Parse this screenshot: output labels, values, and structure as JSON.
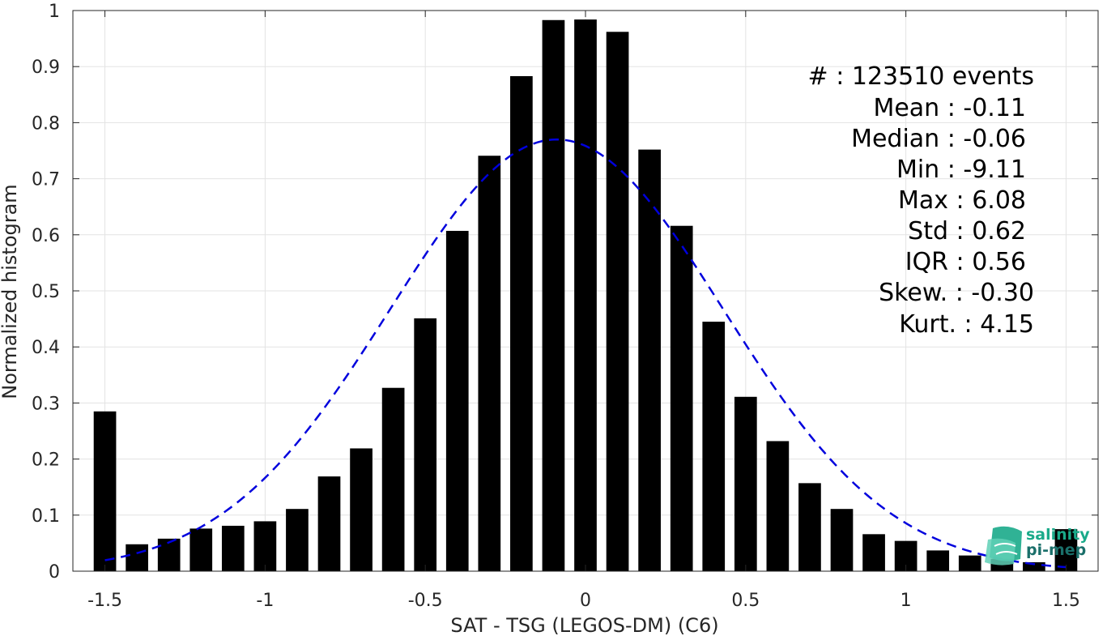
{
  "chart_data": {
    "type": "bar",
    "xlabel": "SAT - TSG (LEGOS-DM) (C6)",
    "ylabel": "Normalized histogram",
    "xlim": [
      -1.6,
      1.6
    ],
    "ylim": [
      0,
      1
    ],
    "xticks": [
      "-1.5",
      "-1",
      "-0.5",
      "0",
      "0.5",
      "1",
      "1.5"
    ],
    "xtick_values": [
      -1.5,
      -1,
      -0.5,
      0,
      0.5,
      1,
      1.5
    ],
    "yticks": [
      "0",
      "0.1",
      "0.2",
      "0.3",
      "0.4",
      "0.5",
      "0.6",
      "0.7",
      "0.8",
      "0.9",
      "1"
    ],
    "ytick_values": [
      0,
      0.1,
      0.2,
      0.3,
      0.4,
      0.5,
      0.6,
      0.7,
      0.8,
      0.9,
      1
    ],
    "grid": true,
    "bar_width": 0.07,
    "bars": {
      "x": [
        -1.5,
        -1.4,
        -1.3,
        -1.2,
        -1.1,
        -1.0,
        -0.9,
        -0.8,
        -0.7,
        -0.6,
        -0.5,
        -0.4,
        -0.3,
        -0.2,
        -0.1,
        0.0,
        0.1,
        0.2,
        0.3,
        0.4,
        0.5,
        0.6,
        0.7,
        0.8,
        0.9,
        1.0,
        1.1,
        1.2,
        1.3,
        1.4,
        1.5
      ],
      "values": [
        0.285,
        0.048,
        0.058,
        0.076,
        0.081,
        0.089,
        0.111,
        0.169,
        0.219,
        0.327,
        0.451,
        0.607,
        0.741,
        0.883,
        0.983,
        0.984,
        0.962,
        0.752,
        0.616,
        0.445,
        0.311,
        0.232,
        0.157,
        0.111,
        0.066,
        0.054,
        0.037,
        0.028,
        0.022,
        0.016,
        0.075
      ],
      "color": "#000000"
    },
    "fit_curve": {
      "style": "dashed",
      "color": "#0000dd",
      "mean": -0.09,
      "std": 0.52,
      "peak": 0.77,
      "x_range": [
        -1.5,
        1.5
      ]
    }
  },
  "stats": {
    "lines": [
      "#  : 123510 events",
      "Mean : -0.11",
      "Median : -0.06",
      "Min : -9.11",
      "Max : 6.08",
      "Std : 0.62",
      "IQR : 0.56",
      "Skew. : -0.30",
      "Kurt. : 4.15"
    ]
  },
  "logo": {
    "line1": "salinity",
    "line2": "pi-mep",
    "color1": "#1aaa8a",
    "color2": "#1a6f6a"
  }
}
